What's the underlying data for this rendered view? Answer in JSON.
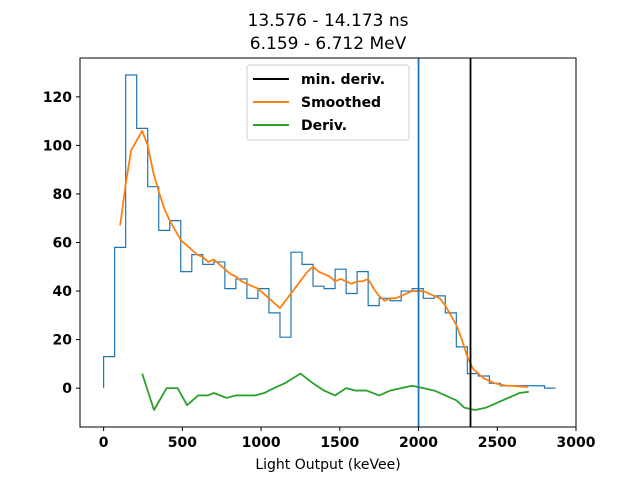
{
  "chart_data": {
    "type": "line",
    "title_line1": "13.576 - 14.173 ns",
    "title_line2": "6.159 - 6.712 MeV",
    "xlabel": "Light Output (keVee)",
    "ylabel": "",
    "xlim": [
      -150,
      3000
    ],
    "ylim": [
      -16,
      136
    ],
    "xticks": [
      0,
      500,
      1000,
      1500,
      2000,
      2500,
      3000
    ],
    "yticks": [
      0,
      20,
      40,
      60,
      80,
      100,
      120
    ],
    "legend_position": "top-center",
    "legend": [
      {
        "label": "min. deriv.",
        "color": "#000000"
      },
      {
        "label": "Smoothed",
        "color": "#ff7f0e"
      },
      {
        "label": "Deriv.",
        "color": "#2ca02c"
      }
    ],
    "histogram": {
      "color": "#1f77b4",
      "edges": [
        0,
        70,
        140,
        210,
        280,
        350,
        420,
        490,
        560,
        630,
        700,
        770,
        840,
        910,
        980,
        1050,
        1120,
        1190,
        1260,
        1330,
        1400,
        1470,
        1540,
        1610,
        1680,
        1750,
        1820,
        1890,
        1960,
        2030,
        2100,
        2170,
        2240,
        2310,
        2380,
        2450,
        2520,
        2590,
        2660,
        2730,
        2800,
        2870
      ],
      "counts": [
        13,
        58,
        129,
        107,
        83,
        65,
        69,
        48,
        55,
        51,
        52,
        41,
        45,
        37,
        41,
        31,
        21,
        56,
        51,
        42,
        41,
        49,
        39,
        48,
        34,
        37,
        36,
        40,
        41,
        37,
        38,
        31,
        17,
        6,
        5,
        2,
        1,
        1,
        1,
        1,
        0
      ]
    },
    "smoothed": {
      "color": "#ff7f0e",
      "x": [
        105,
        140,
        175,
        210,
        245,
        280,
        315,
        350,
        385,
        420,
        455,
        490,
        525,
        560,
        595,
        630,
        665,
        700,
        735,
        770,
        805,
        840,
        875,
        910,
        945,
        980,
        1015,
        1050,
        1085,
        1120,
        1155,
        1190,
        1225,
        1260,
        1295,
        1330,
        1365,
        1400,
        1435,
        1470,
        1505,
        1540,
        1575,
        1610,
        1645,
        1680,
        1715,
        1750,
        1785,
        1820,
        1855,
        1890,
        1925,
        1960,
        1995,
        2030,
        2065,
        2100,
        2135,
        2170,
        2205,
        2240,
        2275,
        2310,
        2345,
        2380,
        2415,
        2450,
        2485,
        2520,
        2555,
        2590,
        2625,
        2660,
        2695
      ],
      "y": [
        67,
        84,
        98,
        102,
        106,
        100,
        89,
        81,
        74,
        69,
        65,
        61,
        59,
        57,
        55,
        54,
        52,
        53,
        51,
        49,
        47,
        46,
        44,
        43,
        42,
        41,
        39,
        37,
        35,
        33,
        36,
        39,
        42,
        45,
        48,
        50,
        48,
        47,
        46,
        44,
        45,
        44,
        43,
        44,
        44,
        45,
        41,
        38,
        36,
        37,
        37,
        38,
        39,
        40,
        40,
        40,
        39,
        38,
        37,
        34,
        30,
        26,
        20,
        13,
        8,
        6,
        4,
        3,
        2,
        1.5,
        1,
        1,
        0.8,
        0.6,
        0.5
      ]
    },
    "derivative": {
      "color": "#2ca02c",
      "x": [
        245,
        320,
        400,
        470,
        530,
        600,
        660,
        700,
        780,
        840,
        900,
        960,
        1020,
        1080,
        1150,
        1250,
        1330,
        1400,
        1470,
        1540,
        1600,
        1670,
        1750,
        1820,
        1890,
        1960,
        2030,
        2100,
        2170,
        2240,
        2290,
        2360,
        2430,
        2500,
        2570,
        2640,
        2700
      ],
      "y": [
        6,
        -9,
        0,
        0,
        -7,
        -3,
        -3,
        -2,
        -4,
        -3,
        -3,
        -3,
        -2,
        0,
        2,
        6,
        2,
        -1,
        -3,
        0,
        -1,
        -1,
        -3,
        -1,
        0,
        1,
        0,
        -1,
        -3,
        -5,
        -8,
        -9,
        -8,
        -6,
        -4,
        -2,
        -1.5
      ]
    },
    "vlines": [
      {
        "x": 2000,
        "color": "#1f77b4"
      },
      {
        "x": 2330,
        "color": "#000000"
      }
    ]
  }
}
